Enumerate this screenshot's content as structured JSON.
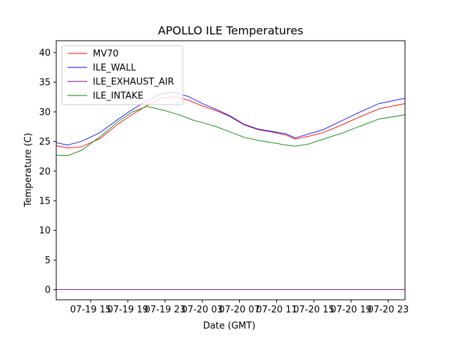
{
  "chart_data": {
    "type": "line",
    "title": "APOLLO ILE Temperatures",
    "xlabel": "Date (GMT)",
    "ylabel": "Temperature (C)",
    "xlim_hours": [
      11.3,
      48.8
    ],
    "ylim": [
      -1.7,
      42
    ],
    "x_unit": "hours since 07-19 00 GMT",
    "yticks": [
      0,
      5,
      10,
      15,
      20,
      25,
      30,
      35,
      40
    ],
    "xticks": [
      {
        "hour": 15,
        "label": "07-19 15"
      },
      {
        "hour": 19,
        "label": "07-19 19"
      },
      {
        "hour": 23,
        "label": "07-19 23"
      },
      {
        "hour": 27,
        "label": "07-20 03"
      },
      {
        "hour": 31,
        "label": "07-20 07"
      },
      {
        "hour": 35,
        "label": "07-20 11"
      },
      {
        "hour": 39,
        "label": "07-20 15"
      },
      {
        "hour": 43,
        "label": "07-20 19"
      },
      {
        "hour": 47,
        "label": "07-20 23"
      }
    ],
    "legend_position": "top-left",
    "series": [
      {
        "name": "MV70",
        "color": "#ff0000",
        "x": [
          11.3,
          12.5,
          14,
          16,
          18,
          19.5,
          21,
          22.5,
          24,
          25.5,
          27,
          28.5,
          30,
          31.5,
          33,
          34.5,
          36,
          37,
          38.5,
          40,
          42,
          44,
          46,
          48.8
        ],
        "y": [
          24.3,
          23.9,
          24.1,
          25.5,
          28.0,
          29.6,
          31.0,
          32.3,
          32.6,
          32.0,
          31.0,
          30.2,
          29.2,
          27.8,
          27.0,
          26.6,
          26.1,
          25.4,
          25.9,
          26.5,
          27.8,
          29.2,
          30.5,
          31.4
        ]
      },
      {
        "name": "ILE_WALL",
        "color": "#0000ff",
        "x": [
          11.3,
          12.5,
          14,
          16,
          18,
          19.5,
          21,
          22.5,
          24,
          25.5,
          27,
          28.5,
          30,
          31.5,
          33,
          34.5,
          36,
          37,
          38.5,
          40,
          42,
          44,
          46,
          48.8
        ],
        "y": [
          24.8,
          24.4,
          25.0,
          26.5,
          28.8,
          30.4,
          31.8,
          33.0,
          33.3,
          32.6,
          31.4,
          30.4,
          29.3,
          27.9,
          27.1,
          26.7,
          26.3,
          25.6,
          26.3,
          27.0,
          28.5,
          30.0,
          31.4,
          32.3
        ]
      },
      {
        "name": "ILE_EXHAUST_AIR",
        "color": "#800080",
        "x": [
          11.3,
          48.8
        ],
        "y": [
          0.0,
          0.0
        ]
      },
      {
        "name": "ILE_INTAKE",
        "color": "#008000",
        "x": [
          11.3,
          12.5,
          14,
          16,
          18,
          19.5,
          21,
          22,
          23,
          24.5,
          26,
          27,
          28.5,
          30,
          31.5,
          33,
          34.5,
          36,
          37,
          38.5,
          40,
          42,
          44,
          46,
          48.8
        ],
        "y": [
          22.7,
          22.6,
          23.5,
          25.8,
          28.4,
          30.0,
          30.9,
          30.6,
          30.2,
          29.5,
          28.6,
          28.2,
          27.5,
          26.6,
          25.7,
          25.2,
          24.8,
          24.4,
          24.2,
          24.6,
          25.4,
          26.4,
          27.6,
          28.8,
          29.5
        ]
      }
    ]
  }
}
